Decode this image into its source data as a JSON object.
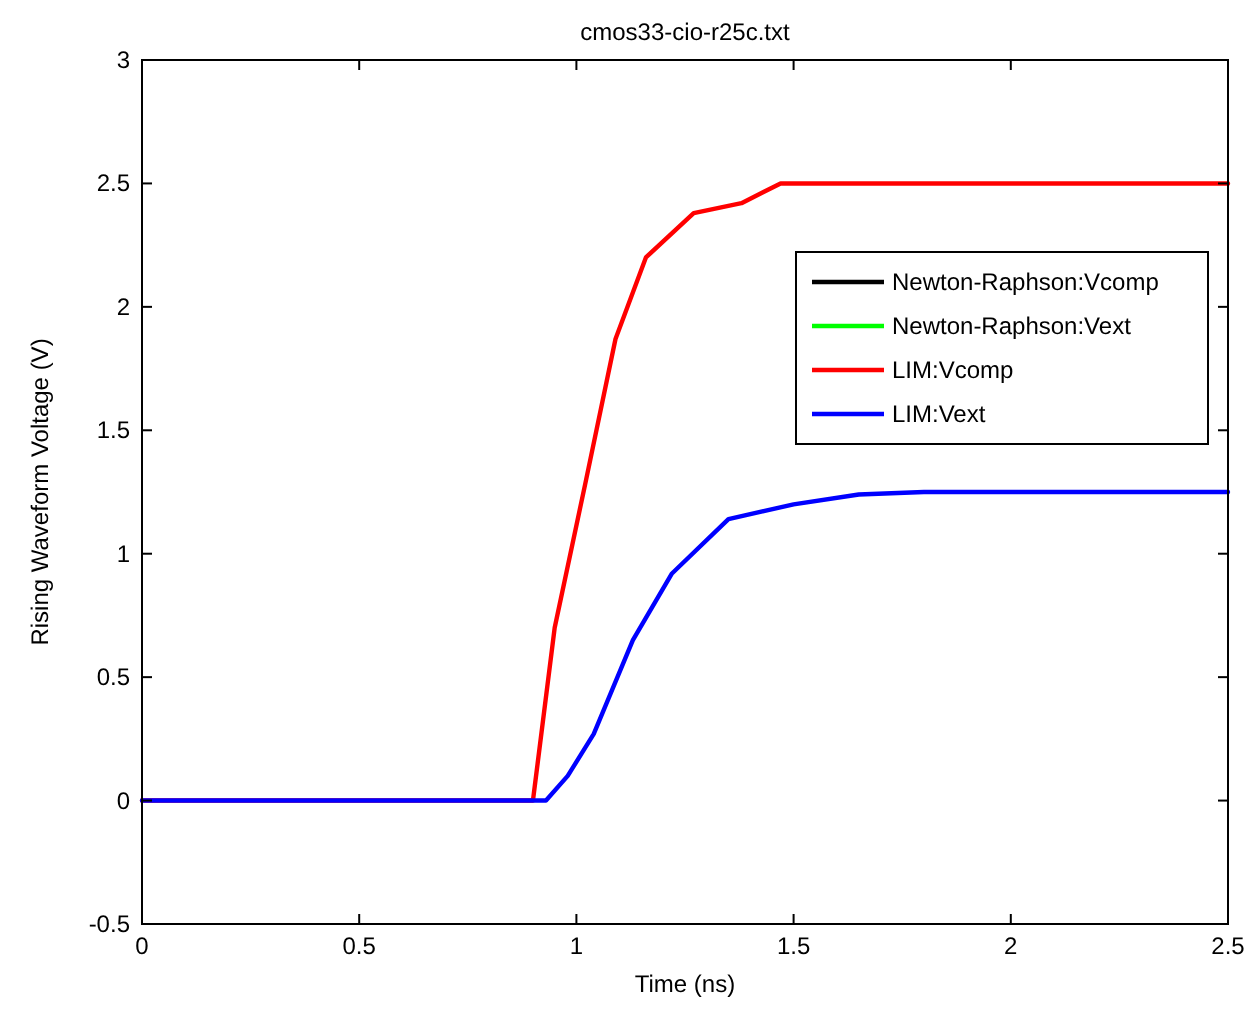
{
  "chart_data": {
    "type": "line",
    "title": "cmos33-cio-r25c.txt",
    "xlabel": "Time (ns)",
    "ylabel": "Rising Waveform Voltage (V)",
    "xlim": [
      0,
      2.5
    ],
    "xticks": [
      0,
      0.5,
      1,
      1.5,
      2,
      2.5
    ],
    "ylim": [
      -0.5,
      3
    ],
    "yticks": [
      -0.5,
      0,
      0.5,
      1,
      1.5,
      2,
      2.5,
      3
    ],
    "grid": false,
    "legend": "top right",
    "line_style": "solid",
    "marker": "none",
    "series": [
      {
        "name": "Newton-Raphson:Vcomp",
        "color": "#000000"
      },
      {
        "name": "Newton-Raphson:Vext",
        "color": "#00ff00"
      },
      {
        "name": "LIM:Vcomp",
        "color": "#ff0000",
        "x": [
          0,
          0.9,
          0.95,
          1.02,
          1.09,
          1.16,
          1.27,
          1.38,
          1.47,
          2.5
        ],
        "values": [
          0,
          0,
          0.7,
          1.28,
          1.87,
          2.2,
          2.38,
          2.42,
          2.5,
          2.5
        ]
      },
      {
        "name": "LIM:Vext",
        "color": "#0000ff",
        "x": [
          0,
          0.93,
          0.98,
          1.04,
          1.13,
          1.22,
          1.35,
          1.5,
          1.65,
          1.8,
          2.5
        ],
        "values": [
          0,
          0,
          0.1,
          0.27,
          0.65,
          0.92,
          1.14,
          1.2,
          1.24,
          1.25,
          1.25
        ]
      }
    ]
  }
}
